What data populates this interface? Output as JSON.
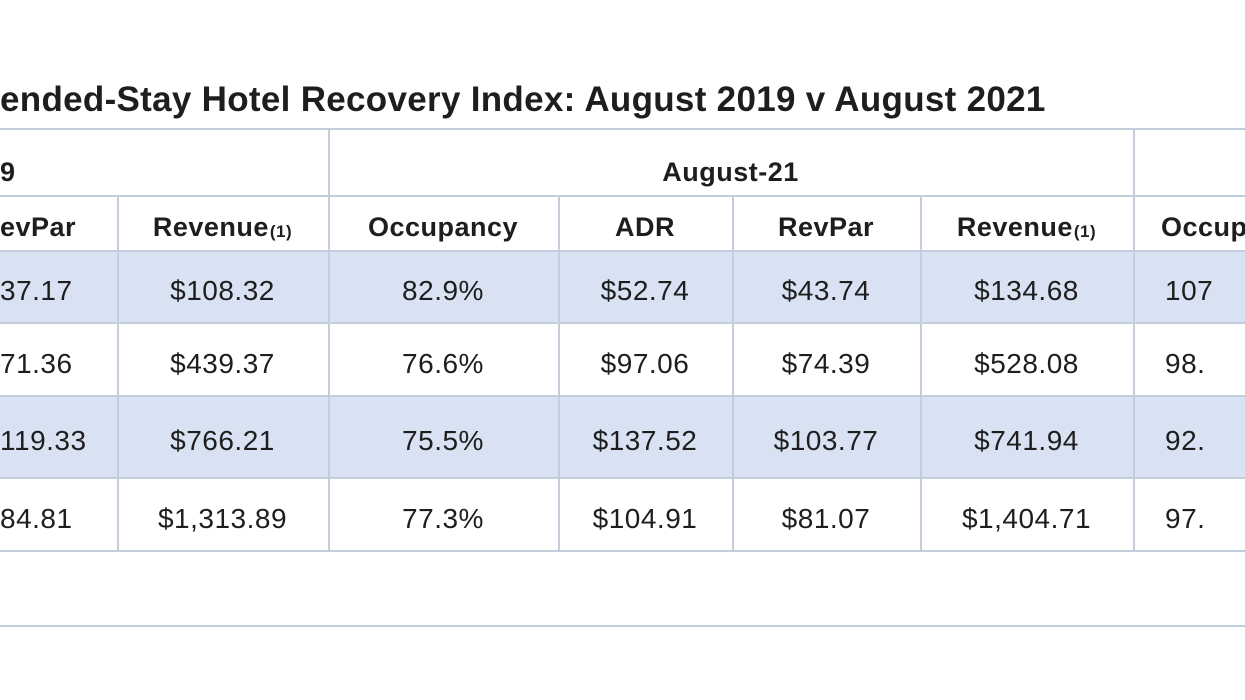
{
  "title": "ended-Stay Hotel Recovery Index: August 2019 v August 2021",
  "table": {
    "group_headers": [
      "9",
      "August-21",
      ""
    ],
    "columns": [
      {
        "text": "evPar"
      },
      {
        "text": "Revenue",
        "note": "(1)"
      },
      {
        "text": "Occupancy"
      },
      {
        "text": "ADR"
      },
      {
        "text": "RevPar"
      },
      {
        "text": "Revenue",
        "note": "(1)"
      },
      {
        "text": "Occup"
      }
    ],
    "rows": [
      [
        "37.17",
        "$108.32",
        "82.9%",
        "$52.74",
        "$43.74",
        "$134.68",
        "107"
      ],
      [
        "71.36",
        "$439.37",
        "76.6%",
        "$97.06",
        "$74.39",
        "$528.08",
        "98."
      ],
      [
        "119.33",
        "$766.21",
        "75.5%",
        "$137.52",
        "$103.77",
        "$741.94",
        "92."
      ],
      [
        "84.81",
        "$1,313.89",
        "77.3%",
        "$104.91",
        "$81.07",
        "$1,404.71",
        "97."
      ]
    ]
  }
}
